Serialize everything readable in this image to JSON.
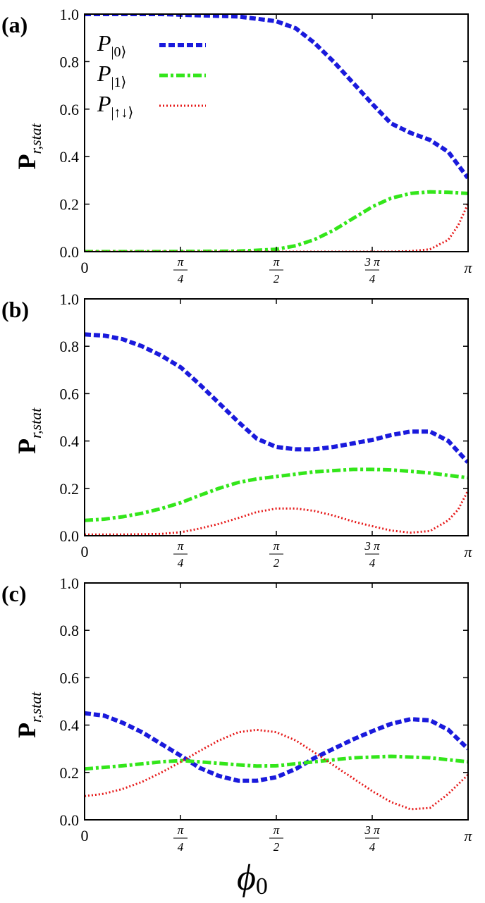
{
  "chart_data": [
    {
      "panel_label": "(a)",
      "type": "line",
      "x_label_main": "ϕ",
      "x_label_sub": "0",
      "y_label_main": "P",
      "y_label_sub": "r,stat",
      "xlim": [
        0,
        3.14159
      ],
      "ylim": [
        0,
        1.0
      ],
      "y_ticks": [
        "0.0",
        "0.2",
        "0.4",
        "0.6",
        "0.8",
        "1.0"
      ],
      "x_ticks": [
        {
          "value": 0,
          "num": "0",
          "den": ""
        },
        {
          "value": 0.7854,
          "num": "π",
          "den": "4"
        },
        {
          "value": 1.5708,
          "num": "π",
          "den": "2"
        },
        {
          "value": 2.3562,
          "num": "3 π",
          "den": "4"
        },
        {
          "value": 3.14159,
          "num": "π",
          "den": ""
        }
      ],
      "legend": {
        "position": "top-left",
        "entries": [
          {
            "label": "P",
            "sub": "|0⟩"
          },
          {
            "label": "P",
            "sub": "|1⟩"
          },
          {
            "label": "P",
            "sub": "|↑↓⟩"
          }
        ]
      },
      "series": [
        {
          "name": "P|0⟩",
          "color": "#1a1adc",
          "style": "dashed",
          "x": [
            0,
            0.31,
            0.63,
            0.94,
            1.26,
            1.57,
            1.73,
            1.88,
            2.04,
            2.2,
            2.36,
            2.51,
            2.67,
            2.83,
            2.98,
            3.14
          ],
          "values": [
            1.0,
            1.0,
            1.0,
            0.995,
            0.99,
            0.97,
            0.94,
            0.88,
            0.8,
            0.71,
            0.62,
            0.54,
            0.5,
            0.47,
            0.42,
            0.31
          ]
        },
        {
          "name": "P|1⟩",
          "color": "#33e61a",
          "style": "dashdot",
          "x": [
            0,
            0.63,
            1.26,
            1.57,
            1.73,
            1.88,
            2.04,
            2.2,
            2.36,
            2.51,
            2.67,
            2.83,
            2.98,
            3.14
          ],
          "values": [
            0.0,
            0.0,
            0.002,
            0.01,
            0.025,
            0.05,
            0.09,
            0.14,
            0.19,
            0.225,
            0.245,
            0.252,
            0.25,
            0.245
          ]
        },
        {
          "name": "P|↑↓⟩",
          "color": "#e61a1a",
          "style": "dotted",
          "x": [
            0,
            1.57,
            2.2,
            2.51,
            2.67,
            2.83,
            2.98,
            3.06,
            3.14
          ],
          "values": [
            0.0,
            0.0,
            0.0,
            0.0,
            0.002,
            0.01,
            0.05,
            0.11,
            0.2
          ]
        }
      ]
    },
    {
      "panel_label": "(b)",
      "type": "line",
      "y_label_main": "P",
      "y_label_sub": "r,stat",
      "xlim": [
        0,
        3.14159
      ],
      "ylim": [
        0,
        1.0
      ],
      "y_ticks": [
        "0.0",
        "0.2",
        "0.4",
        "0.6",
        "0.8",
        "1.0"
      ],
      "x_ticks": [
        {
          "value": 0,
          "num": "0",
          "den": ""
        },
        {
          "value": 0.7854,
          "num": "π",
          "den": "4"
        },
        {
          "value": 1.5708,
          "num": "π",
          "den": "2"
        },
        {
          "value": 2.3562,
          "num": "3 π",
          "den": "4"
        },
        {
          "value": 3.14159,
          "num": "π",
          "den": ""
        }
      ],
      "series": [
        {
          "name": "P|0⟩",
          "color": "#1a1adc",
          "style": "dashed",
          "x": [
            0,
            0.16,
            0.31,
            0.47,
            0.63,
            0.79,
            0.94,
            1.1,
            1.26,
            1.41,
            1.57,
            1.73,
            1.88,
            2.04,
            2.2,
            2.36,
            2.51,
            2.67,
            2.83,
            2.98,
            3.14
          ],
          "values": [
            0.85,
            0.845,
            0.83,
            0.8,
            0.76,
            0.71,
            0.64,
            0.56,
            0.48,
            0.41,
            0.375,
            0.365,
            0.365,
            0.375,
            0.39,
            0.405,
            0.425,
            0.44,
            0.44,
            0.4,
            0.31
          ]
        },
        {
          "name": "P|1⟩",
          "color": "#33e61a",
          "style": "dashdot",
          "x": [
            0,
            0.16,
            0.31,
            0.47,
            0.63,
            0.79,
            0.94,
            1.1,
            1.26,
            1.41,
            1.57,
            1.73,
            1.88,
            2.04,
            2.2,
            2.36,
            2.51,
            2.67,
            2.83,
            2.98,
            3.14
          ],
          "values": [
            0.065,
            0.07,
            0.08,
            0.095,
            0.115,
            0.14,
            0.17,
            0.2,
            0.225,
            0.24,
            0.25,
            0.26,
            0.27,
            0.275,
            0.28,
            0.28,
            0.278,
            0.272,
            0.265,
            0.255,
            0.245
          ]
        },
        {
          "name": "P|↑↓⟩",
          "color": "#e61a1a",
          "style": "dotted",
          "x": [
            0,
            0.31,
            0.63,
            0.79,
            0.94,
            1.1,
            1.26,
            1.41,
            1.57,
            1.73,
            1.88,
            2.04,
            2.2,
            2.36,
            2.51,
            2.67,
            2.83,
            2.98,
            3.06,
            3.14
          ],
          "values": [
            0.005,
            0.005,
            0.008,
            0.015,
            0.03,
            0.05,
            0.075,
            0.1,
            0.115,
            0.115,
            0.105,
            0.085,
            0.06,
            0.04,
            0.022,
            0.013,
            0.02,
            0.065,
            0.11,
            0.19
          ]
        }
      ]
    },
    {
      "panel_label": "(c)",
      "type": "line",
      "y_label_main": "P",
      "y_label_sub": "r,stat",
      "xlim": [
        0,
        3.14159
      ],
      "ylim": [
        0,
        1.0
      ],
      "y_ticks": [
        "0.0",
        "0.2",
        "0.4",
        "0.6",
        "0.8",
        "1.0"
      ],
      "x_ticks": [
        {
          "value": 0,
          "num": "0",
          "den": ""
        },
        {
          "value": 0.7854,
          "num": "π",
          "den": "4"
        },
        {
          "value": 1.5708,
          "num": "π",
          "den": "2"
        },
        {
          "value": 2.3562,
          "num": "3 π",
          "den": "4"
        },
        {
          "value": 3.14159,
          "num": "π",
          "den": ""
        }
      ],
      "series": [
        {
          "name": "P|0⟩",
          "color": "#1a1adc",
          "style": "dashed",
          "x": [
            0,
            0.16,
            0.31,
            0.47,
            0.63,
            0.79,
            0.94,
            1.1,
            1.26,
            1.41,
            1.57,
            1.73,
            1.88,
            2.04,
            2.2,
            2.36,
            2.51,
            2.67,
            2.83,
            2.98,
            3.14
          ],
          "values": [
            0.45,
            0.44,
            0.41,
            0.37,
            0.32,
            0.27,
            0.22,
            0.185,
            0.165,
            0.165,
            0.18,
            0.215,
            0.26,
            0.3,
            0.34,
            0.375,
            0.405,
            0.425,
            0.42,
            0.38,
            0.3
          ]
        },
        {
          "name": "P|1⟩",
          "color": "#33e61a",
          "style": "dashdot",
          "x": [
            0,
            0.31,
            0.63,
            0.79,
            0.94,
            1.26,
            1.41,
            1.57,
            1.88,
            2.2,
            2.51,
            2.83,
            3.14
          ],
          "values": [
            0.215,
            0.228,
            0.245,
            0.25,
            0.245,
            0.232,
            0.227,
            0.228,
            0.245,
            0.262,
            0.268,
            0.262,
            0.245
          ]
        },
        {
          "name": "P|↑↓⟩",
          "color": "#e61a1a",
          "style": "dotted",
          "x": [
            0,
            0.16,
            0.31,
            0.47,
            0.63,
            0.79,
            0.94,
            1.1,
            1.26,
            1.41,
            1.57,
            1.73,
            1.88,
            2.04,
            2.2,
            2.36,
            2.51,
            2.67,
            2.83,
            2.98,
            3.14
          ],
          "values": [
            0.1,
            0.11,
            0.13,
            0.16,
            0.2,
            0.245,
            0.29,
            0.335,
            0.37,
            0.38,
            0.37,
            0.335,
            0.285,
            0.23,
            0.175,
            0.12,
            0.075,
            0.045,
            0.05,
            0.11,
            0.19
          ]
        }
      ]
    }
  ]
}
